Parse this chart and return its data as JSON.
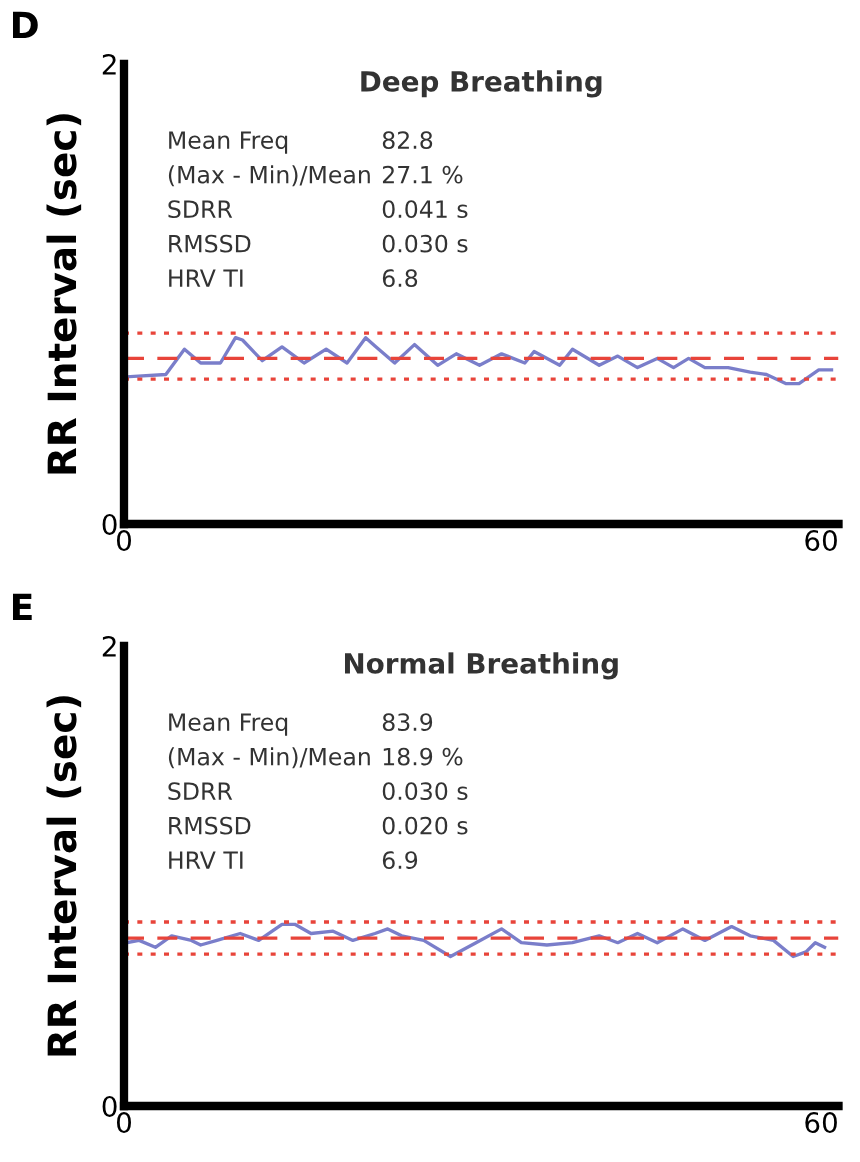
{
  "chart_data": [
    {
      "type": "line",
      "title": "Deep Breathing",
      "ylabel": "RR Interval (sec)",
      "xlim": [
        0,
        61.5
      ],
      "ylim": [
        0,
        2
      ],
      "xticks": [
        0,
        60
      ],
      "yticks": [
        0,
        2
      ],
      "grid": false,
      "legend": false,
      "annotations": [
        "D",
        "Mean Freq",
        "82.8",
        "(Max - Min)/Mean",
        "27.1 %",
        "SDRR",
        "0.041 s",
        "RMSSD",
        "0.030 s",
        "HRV TI",
        "6.8"
      ],
      "ref_lines": [
        {
          "axis": "y",
          "value": 0.72,
          "color": "#e8443a",
          "line_style": "dashed"
        },
        {
          "axis": "y",
          "value": 0.83,
          "color": "#e8443a",
          "line_style": "dotted"
        },
        {
          "axis": "y",
          "value": 0.63,
          "color": "#e8443a",
          "line_style": "dotted"
        }
      ],
      "series": [
        {
          "color": "#6b70c4",
          "x": [
            0.2,
            3.6,
            5.2,
            6.6,
            8.3,
            9.6,
            10.2,
            11.9,
            13.6,
            15.5,
            17.4,
            19.2,
            20.8,
            21.7,
            23.3,
            25.0,
            27.0,
            28.6,
            30.6,
            32.5,
            34.5,
            35.3,
            37.5,
            38.6,
            40.9,
            42.5,
            44.2,
            45.9,
            47.3,
            48.6,
            50.0,
            52.0,
            53.9,
            55.3,
            57.0,
            58.1,
            59.8,
            60.9
          ],
          "values": [
            0.64,
            0.65,
            0.76,
            0.7,
            0.7,
            0.81,
            0.8,
            0.71,
            0.77,
            0.7,
            0.76,
            0.7,
            0.81,
            0.77,
            0.7,
            0.78,
            0.69,
            0.74,
            0.69,
            0.74,
            0.7,
            0.75,
            0.69,
            0.76,
            0.69,
            0.73,
            0.68,
            0.72,
            0.68,
            0.72,
            0.68,
            0.68,
            0.66,
            0.65,
            0.61,
            0.61,
            0.67,
            0.67
          ]
        }
      ]
    },
    {
      "type": "line",
      "title": "Normal Breathing",
      "ylabel": "RR Interval (sec)",
      "xlim": [
        0,
        61.5
      ],
      "ylim": [
        0,
        2
      ],
      "xticks": [
        0,
        60
      ],
      "yticks": [
        0,
        2
      ],
      "grid": false,
      "legend": false,
      "annotations": [
        "E",
        "Mean Freq",
        "83.9",
        "(Max - Min)/Mean",
        "18.9 %",
        "SDRR",
        "0.030 s",
        "RMSSD",
        "0.020 s",
        "HRV TI",
        "6.9"
      ],
      "ref_lines": [
        {
          "axis": "y",
          "value": 0.73,
          "color": "#e8443a",
          "line_style": "dashed"
        },
        {
          "axis": "y",
          "value": 0.8,
          "color": "#e8443a",
          "line_style": "dotted"
        },
        {
          "axis": "y",
          "value": 0.66,
          "color": "#e8443a",
          "line_style": "dotted"
        }
      ],
      "series": [
        {
          "color": "#6b70c4",
          "x": [
            0.2,
            1.3,
            2.7,
            4.1,
            5.8,
            6.6,
            8.0,
            10.0,
            11.6,
            13.6,
            14.7,
            16.1,
            18.0,
            19.7,
            21.6,
            22.7,
            23.9,
            25.8,
            28.1,
            30.3,
            32.5,
            34.2,
            36.4,
            38.6,
            40.9,
            42.5,
            44.2,
            45.9,
            48.1,
            50.0,
            52.3,
            53.9,
            55.9,
            57.6,
            58.7,
            59.5,
            60.3
          ],
          "values": [
            0.71,
            0.72,
            0.69,
            0.74,
            0.72,
            0.7,
            0.72,
            0.75,
            0.72,
            0.79,
            0.79,
            0.75,
            0.76,
            0.72,
            0.75,
            0.77,
            0.74,
            0.72,
            0.65,
            0.71,
            0.77,
            0.71,
            0.7,
            0.71,
            0.74,
            0.71,
            0.75,
            0.71,
            0.77,
            0.72,
            0.78,
            0.74,
            0.72,
            0.65,
            0.67,
            0.71,
            0.69
          ]
        }
      ]
    }
  ]
}
